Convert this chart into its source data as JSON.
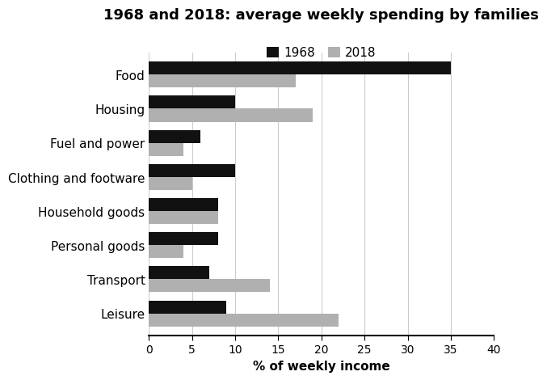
{
  "title": "1968 and 2018: average weekly spending by families",
  "categories": [
    "Food",
    "Housing",
    "Fuel and power",
    "Clothing and footware",
    "Household goods",
    "Personal goods",
    "Transport",
    "Leisure"
  ],
  "values_1968": [
    35,
    10,
    6,
    10,
    8,
    8,
    7,
    9
  ],
  "values_2018": [
    17,
    19,
    4,
    5,
    8,
    4,
    14,
    22
  ],
  "color_1968": "#111111",
  "color_2018": "#b0b0b0",
  "xlabel": "% of weekly income",
  "xlim": [
    0,
    40
  ],
  "xticks": [
    0,
    5,
    10,
    15,
    20,
    25,
    30,
    35,
    40
  ],
  "legend_labels": [
    "1968",
    "2018"
  ],
  "bar_height": 0.38,
  "title_fontsize": 13,
  "label_fontsize": 11,
  "tick_fontsize": 10,
  "legend_fontsize": 11,
  "background_color": "#ffffff"
}
